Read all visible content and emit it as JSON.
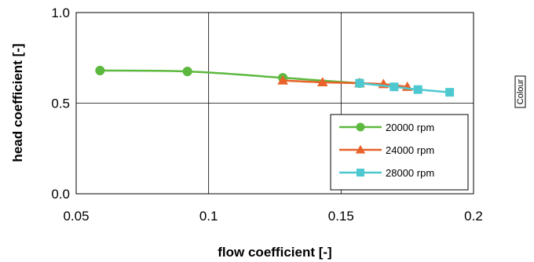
{
  "chart_data": {
    "type": "line",
    "xlabel": "flow coefficient [-]",
    "ylabel": "head coefficient [-]",
    "xlim": [
      0.05,
      0.2
    ],
    "ylim": [
      0.0,
      1.0
    ],
    "x_ticks": [
      "0.05",
      "0.1",
      "0.15",
      "0.2"
    ],
    "y_ticks": [
      "0.0",
      "0.5",
      "1.0"
    ],
    "grid": true,
    "legend_position": "bottom-right",
    "series": [
      {
        "name": "20000 rpm",
        "color": "#5DB840",
        "marker": "circle",
        "x": [
          0.059,
          0.092,
          0.128,
          0.157
        ],
        "y": [
          0.68,
          0.675,
          0.64,
          0.61
        ]
      },
      {
        "name": "24000 rpm",
        "color": "#E8622A",
        "marker": "triangle",
        "x": [
          0.128,
          0.143,
          0.157,
          0.166,
          0.175
        ],
        "y": [
          0.625,
          0.615,
          0.61,
          0.605,
          0.59
        ]
      },
      {
        "name": "28000 rpm",
        "color": "#4DC8D0",
        "marker": "square",
        "x": [
          0.157,
          0.17,
          0.179,
          0.191
        ],
        "y": [
          0.61,
          0.59,
          0.575,
          0.56
        ]
      }
    ]
  },
  "side_label": "Colour"
}
